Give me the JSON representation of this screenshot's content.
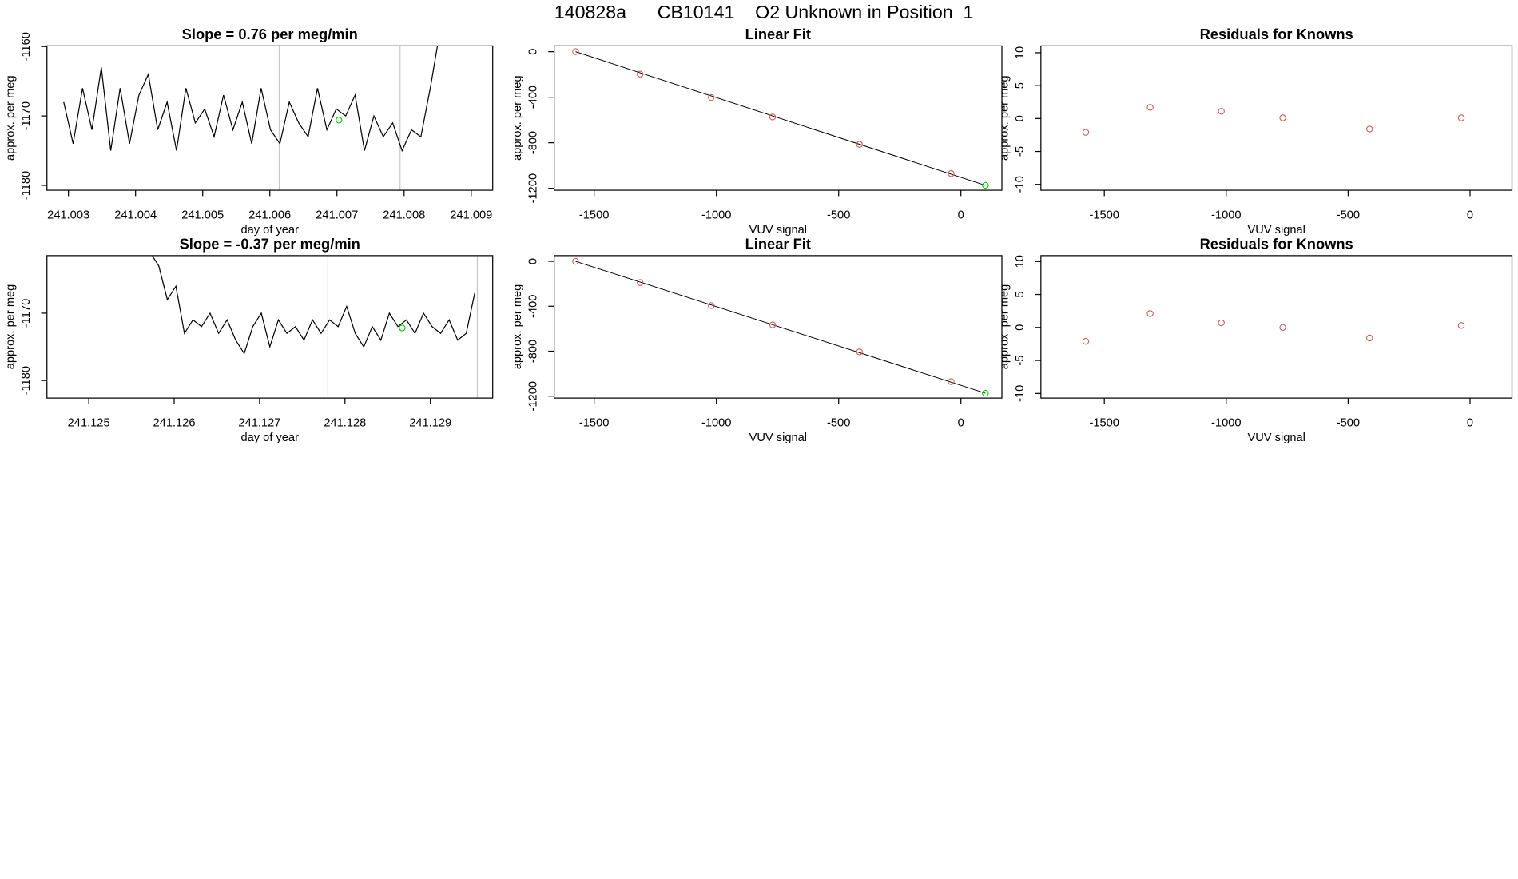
{
  "title": "140828a      CB10141    O2 Unknown in Position  1",
  "chart_data": [
    {
      "type": "line",
      "title": "Slope =  0.76  per meg/min",
      "xlabel": "day of year",
      "ylabel": "approx. per meg",
      "xlim": [
        241.00268,
        241.00932
      ],
      "ylim": [
        -1180.7,
        -1159.9
      ],
      "xticks": [
        241.003,
        241.004,
        241.005,
        241.006,
        241.007,
        241.008,
        241.009
      ],
      "yticks": [
        -1180,
        -1170,
        -1160
      ],
      "vlines": [
        241.00614,
        241.00794
      ],
      "vline_color": "#c8c8c8",
      "series": [
        {
          "color": "#000000",
          "x": [
            241.00293,
            241.00307,
            241.00321,
            241.00335,
            241.00349,
            241.00363,
            241.00377,
            241.00391,
            241.00405,
            241.00419,
            241.00433,
            241.00447,
            241.00461,
            241.00475,
            241.00489,
            241.00503,
            241.00517,
            241.00531,
            241.00545,
            241.00559,
            241.00573,
            241.00587,
            241.00601,
            241.00615,
            241.00629,
            241.00643,
            241.00657,
            241.00671,
            241.00685,
            241.00699,
            241.00713,
            241.00727,
            241.00741,
            241.00755,
            241.00769,
            241.00783,
            241.00797,
            241.00811,
            241.00825,
            241.00839,
            241.00853
          ],
          "y": [
            -1168,
            -1174,
            -1166,
            -1172,
            -1163,
            -1175,
            -1166,
            -1174,
            -1167,
            -1164,
            -1172,
            -1168,
            -1175,
            -1166,
            -1171,
            -1169,
            -1173,
            -1167,
            -1172,
            -1168,
            -1174,
            -1166,
            -1172,
            -1174,
            -1168,
            -1171,
            -1173,
            -1166,
            -1172,
            -1169,
            -1170,
            -1167,
            -1175,
            -1170,
            -1173,
            -1171,
            -1175,
            -1172,
            -1173,
            -1166,
            -1158
          ]
        },
        {
          "color": "#00cc00",
          "x": [
            241.00703
          ],
          "y": [
            -1170.6
          ]
        }
      ]
    },
    {
      "type": "scatter",
      "title": "Linear Fit",
      "xlabel": "VUV signal",
      "ylabel": "approx. per meg",
      "xlim": [
        -1663.5,
        167.5
      ],
      "ylim": [
        -1217,
        51
      ],
      "xticks": [
        -1500,
        -1000,
        -500,
        0
      ],
      "yticks": [
        -1200,
        -800,
        -400,
        0
      ],
      "fit_line": {
        "color": "#000000",
        "x": [
          -1576,
          100
        ],
        "y": [
          0,
          -1174
        ]
      },
      "series": [
        {
          "color": "#cd5c5c",
          "x": [
            -1576,
            -1312,
            -1021,
            -770,
            -415,
            -40
          ],
          "y": [
            0,
            -197,
            -403,
            -574,
            -814,
            -1071
          ]
        },
        {
          "color": "#00cc00",
          "x": [
            100
          ],
          "y": [
            -1174
          ]
        }
      ]
    },
    {
      "type": "scatter",
      "title": "Residuals for Knowns",
      "xlabel": "VUV signal",
      "ylabel": "approx. per meg",
      "xlim": [
        -1760,
        172
      ],
      "ylim": [
        -10.89,
        11.04
      ],
      "xticks": [
        -1500,
        -1000,
        -500,
        0
      ],
      "yticks": [
        -10,
        -5,
        0,
        5,
        10
      ],
      "series": [
        {
          "color": "#cd5c5c",
          "x": [
            -1576,
            -1312,
            -1020,
            -768,
            -412,
            -36
          ],
          "y": [
            -2.1,
            1.7,
            1.1,
            0.1,
            -1.6,
            0.1
          ]
        }
      ]
    },
    {
      "type": "line",
      "title": "Slope =  -0.37  per meg/min",
      "xlabel": "day of year",
      "ylabel": "approx. per meg",
      "xlim": [
        241.12451,
        241.12973
      ],
      "ylim": [
        -1182.6,
        -1161.45
      ],
      "xticks": [
        241.125,
        241.126,
        241.127,
        241.128,
        241.129
      ],
      "yticks": [
        -1180,
        -1170
      ],
      "vlines": [
        241.1278,
        241.12955
      ],
      "vline_color": "#c8c8c8",
      "series": [
        {
          "color": "#000000",
          "x": [
            241.12572,
            241.12582,
            241.12592,
            241.12602,
            241.12612,
            241.12622,
            241.12632,
            241.12642,
            241.12652,
            241.12662,
            241.12672,
            241.12682,
            241.12692,
            241.12702,
            241.12712,
            241.12722,
            241.12732,
            241.12742,
            241.12752,
            241.12762,
            241.12772,
            241.12782,
            241.12792,
            241.12802,
            241.12812,
            241.12822,
            241.12832,
            241.12842,
            241.12852,
            241.12862,
            241.12872,
            241.12882,
            241.12892,
            241.12902,
            241.12912,
            241.12922,
            241.12932,
            241.12942,
            241.12952
          ],
          "y": [
            -1161,
            -1163,
            -1168,
            -1166,
            -1173,
            -1171,
            -1172,
            -1170,
            -1173,
            -1171,
            -1174,
            -1176,
            -1172,
            -1170,
            -1175,
            -1171,
            -1173,
            -1172,
            -1174,
            -1171,
            -1173,
            -1171,
            -1172,
            -1169,
            -1173,
            -1175,
            -1172,
            -1174,
            -1170,
            -1172,
            -1171,
            -1173,
            -1170,
            -1172,
            -1173,
            -1171,
            -1174,
            -1173,
            -1167
          ]
        },
        {
          "color": "#00cc00",
          "x": [
            241.12867
          ],
          "y": [
            -1172.2
          ]
        }
      ]
    },
    {
      "type": "scatter",
      "title": "Linear Fit",
      "xlabel": "VUV signal",
      "ylabel": "approx. per meg",
      "xlim": [
        -1663.5,
        167.5
      ],
      "ylim": [
        -1217,
        51
      ],
      "xticks": [
        -1500,
        -1000,
        -500,
        0
      ],
      "yticks": [
        -1200,
        -800,
        -400,
        0
      ],
      "fit_line": {
        "color": "#000000",
        "x": [
          -1576,
          100
        ],
        "y": [
          0,
          -1174
        ]
      },
      "series": [
        {
          "color": "#cd5c5c",
          "x": [
            -1576,
            -1312,
            -1021,
            -770,
            -415,
            -40
          ],
          "y": [
            0,
            -189,
            -394,
            -566,
            -806,
            -1071
          ]
        },
        {
          "color": "#00cc00",
          "x": [
            100
          ],
          "y": [
            -1174
          ]
        }
      ]
    },
    {
      "type": "scatter",
      "title": "Residuals for Knowns",
      "xlabel": "VUV signal",
      "ylabel": "approx. per meg",
      "xlim": [
        -1760,
        172
      ],
      "ylim": [
        -10.7,
        10.9
      ],
      "xticks": [
        -1500,
        -1000,
        -500,
        0
      ],
      "yticks": [
        -10,
        -5,
        0,
        5,
        10
      ],
      "series": [
        {
          "color": "#cd5c5c",
          "x": [
            -1576,
            -1312,
            -1020,
            -768,
            -412,
            -36
          ],
          "y": [
            -2.1,
            2.1,
            0.7,
            0,
            -1.6,
            0.3
          ]
        }
      ]
    }
  ]
}
